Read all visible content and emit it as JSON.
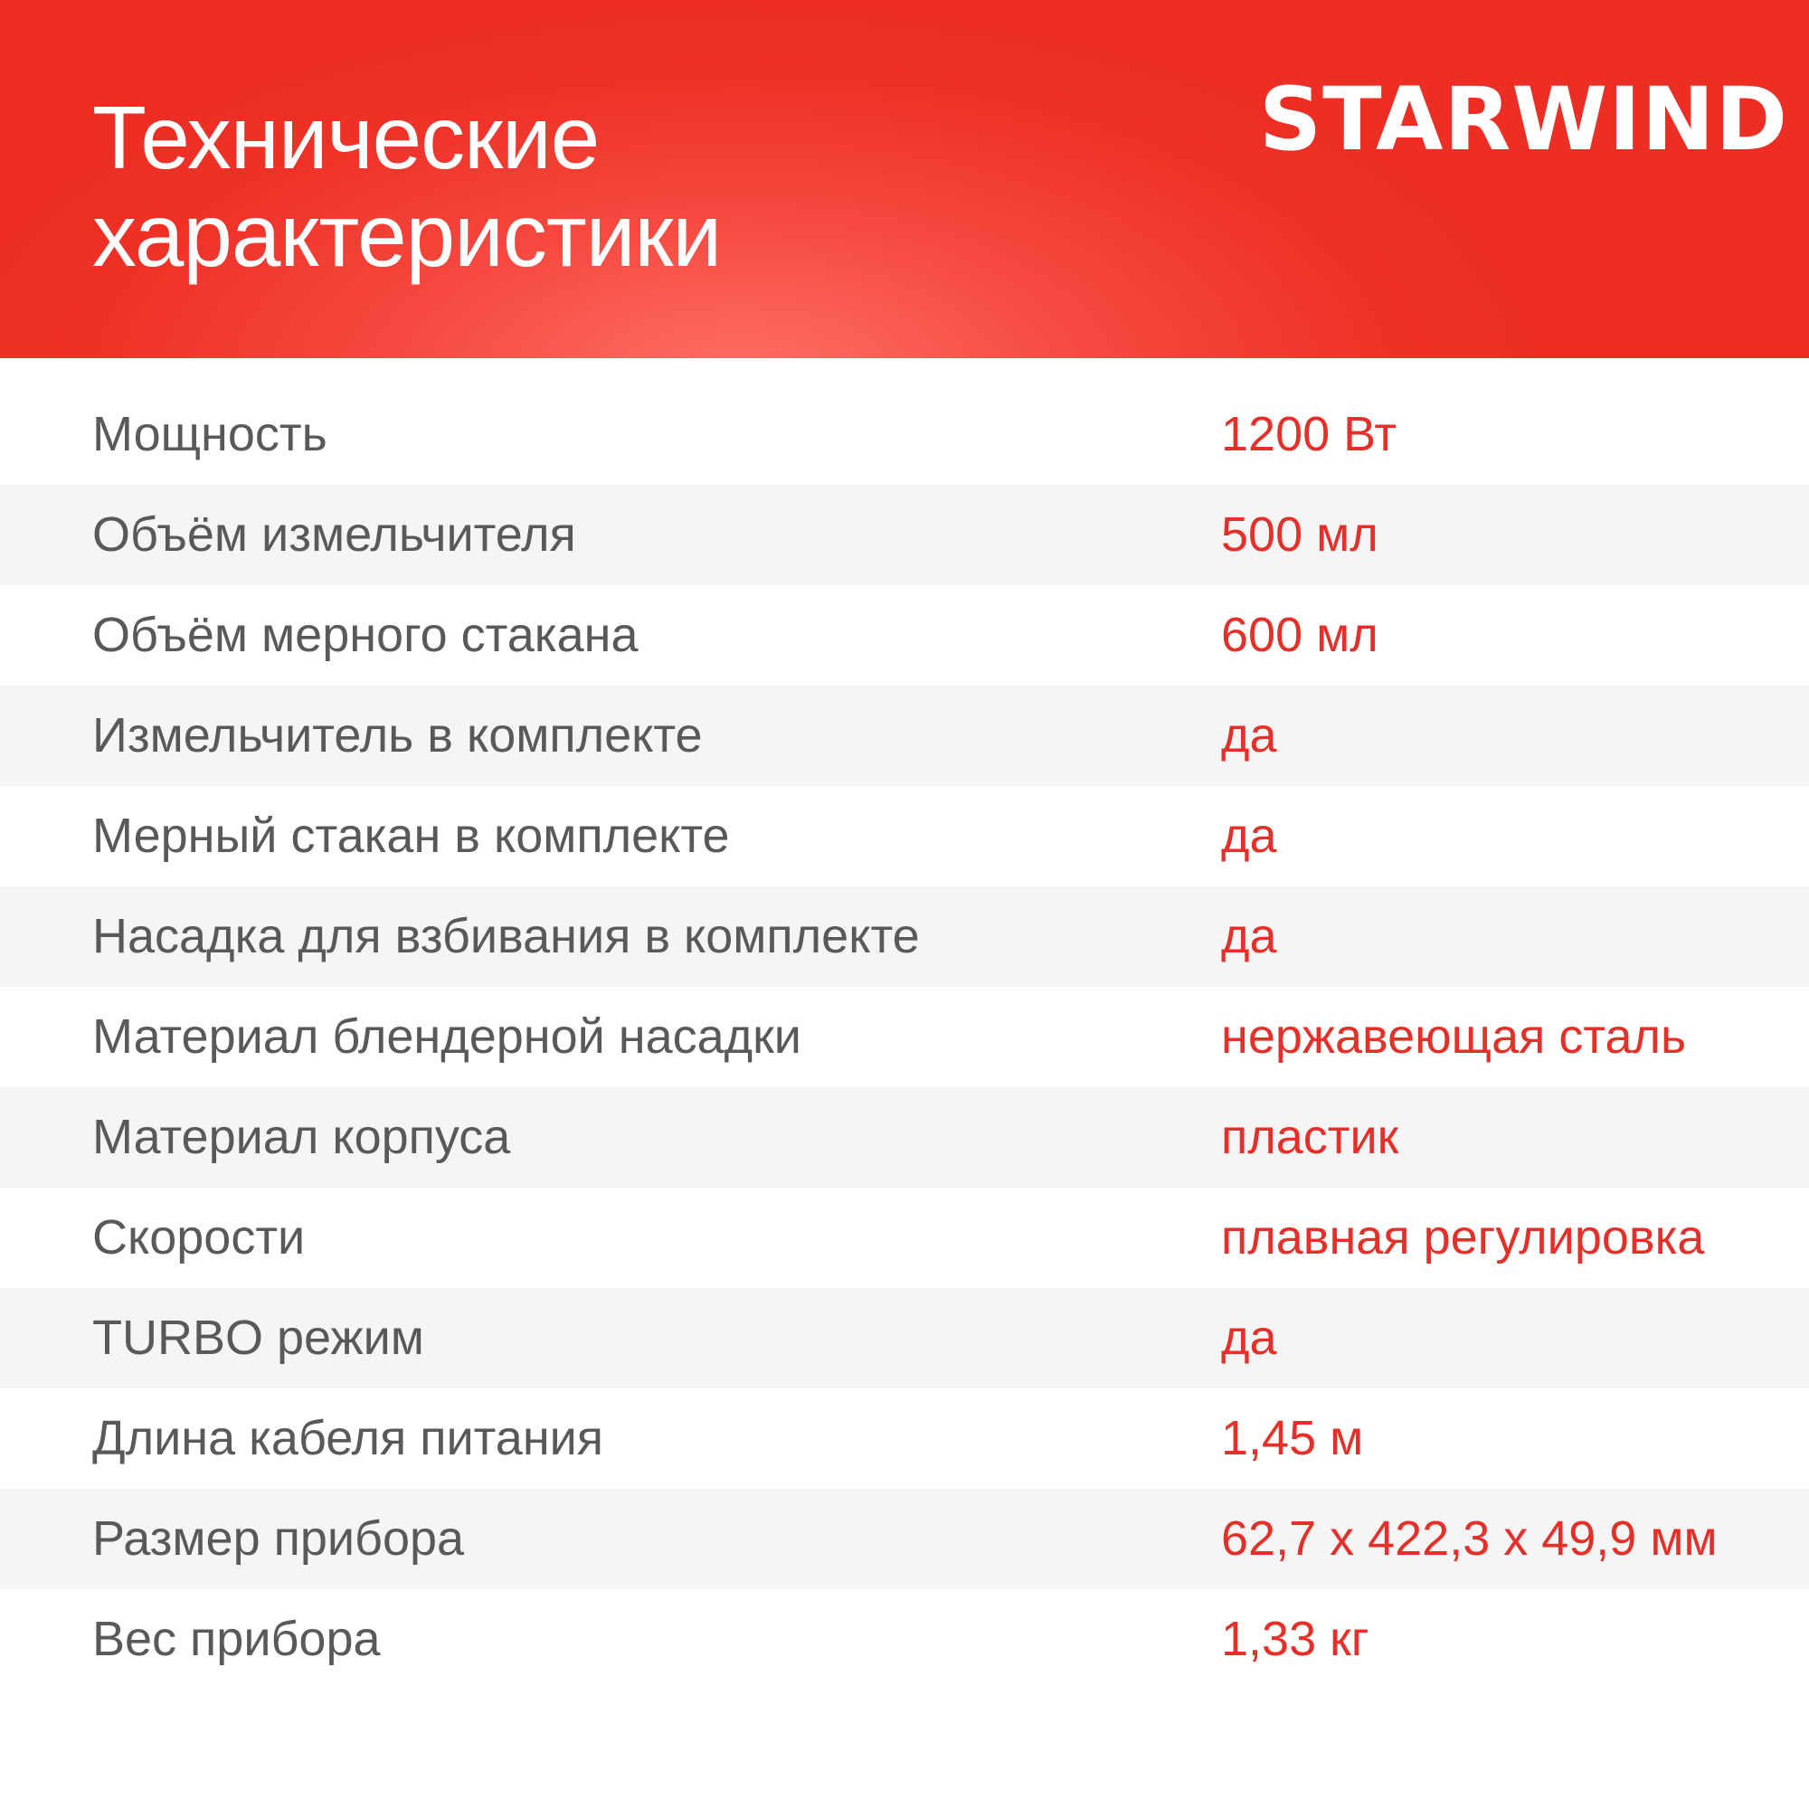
{
  "header": {
    "title_line1": "Технические",
    "title_line2": "характеристики",
    "brand": "STARWIND"
  },
  "colors": {
    "accent": "#ee3127",
    "label": "#595959",
    "value": "#e5302a",
    "stripe": "#f5f5f5"
  },
  "specs": [
    {
      "label": "Мощность",
      "value": "1200 Вт"
    },
    {
      "label": "Объём измельчителя",
      "value": "500 мл"
    },
    {
      "label": "Объём мерного стакана",
      "value": "600 мл"
    },
    {
      "label": "Измельчитель в комплекте",
      "value": "да"
    },
    {
      "label": "Мерный стакан в комплекте",
      "value": "да"
    },
    {
      "label": "Насадка для взбивания в комплекте",
      "value": "да"
    },
    {
      "label": "Материал блендерной насадки",
      "value": "нержавеющая сталь"
    },
    {
      "label": "Материал корпуса",
      "value": "пластик"
    },
    {
      "label": "Скорости",
      "value": "плавная регулировка"
    },
    {
      "label": "TURBO режим",
      "value": "да"
    },
    {
      "label": "Длина кабеля питания",
      "value": "1,45 м"
    },
    {
      "label": "Размер прибора",
      "value": "62,7 x 422,3 x 49,9 мм"
    },
    {
      "label": "Вес прибора",
      "value": "1,33 кг"
    }
  ]
}
